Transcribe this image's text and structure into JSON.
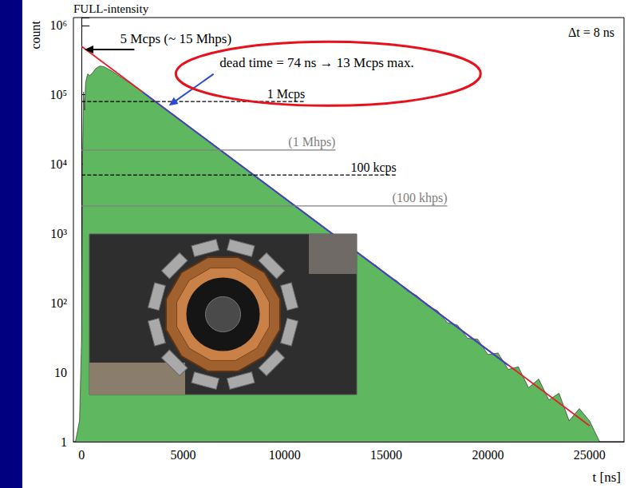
{
  "chart_data": {
    "type": "area",
    "title": "FULL-intensity",
    "subtitle": "Δt = 8 ns",
    "x_label": "t [ns]",
    "y_label": "count",
    "log": "y",
    "grid": false,
    "xlim": [
      -400,
      26700
    ],
    "xticks": [
      0,
      5000,
      10000,
      15000,
      20000,
      25000
    ],
    "ylim": [
      1,
      1300000
    ],
    "yticks": [
      1,
      10,
      {
        "value": 100,
        "label": "10²"
      },
      {
        "value": 1000,
        "label": "10³"
      },
      {
        "value": 10000,
        "label": "10⁴"
      },
      {
        "value": 100000,
        "label": "10⁵"
      },
      {
        "value": 1000000,
        "label": "10⁶"
      }
    ],
    "series": [
      {
        "type": "area",
        "color": "#5fb760",
        "x": [
          -300,
          -100,
          0,
          50,
          100,
          150,
          200,
          300,
          400,
          500,
          700,
          900,
          1100,
          1500,
          2000,
          2500,
          3000,
          3500,
          4000,
          4500,
          5000,
          5500,
          6000,
          6500,
          7000,
          7500,
          8000,
          8500,
          9000,
          9500,
          10000,
          10500,
          11000,
          11500,
          12000,
          12500,
          13000,
          13500,
          14000,
          14500,
          15000,
          15500,
          16000,
          16500,
          17000,
          17500,
          18000,
          18500,
          19000,
          19500,
          20000,
          20500,
          21000,
          21500,
          22000,
          22500,
          23000,
          23500,
          24000,
          24500,
          25000,
          25500
        ],
        "values": [
          1,
          2,
          30,
          12000,
          110000,
          60000,
          150000,
          200000,
          190000,
          200000,
          240000,
          260000,
          255000,
          220000,
          175000,
          140000,
          110000,
          85000,
          66000,
          51500,
          40000,
          31200,
          24400,
          18800,
          14750,
          11450,
          8850,
          6920,
          5330,
          4190,
          3230,
          2540,
          1930,
          1535,
          1170,
          930,
          705,
          560,
          420,
          345,
          255,
          210,
          150,
          128,
          92,
          78,
          52,
          48,
          31,
          30,
          18,
          19,
          11,
          12,
          6,
          8,
          4,
          5,
          2,
          3,
          2,
          1
        ]
      },
      {
        "type": "line",
        "color": "#e41e26",
        "x": [
          0,
          25000
        ],
        "values": [
          500000,
          1.7
        ]
      },
      {
        "type": "line",
        "color": "#2a4dd0",
        "x": [
          3000,
          21000
        ],
        "values": [
          110000,
          12.6
        ]
      }
    ],
    "reference_lines": [
      {
        "label": "1 Mcps",
        "value": 80000,
        "x": [
          0,
          11000
        ],
        "line_style": "dashed",
        "color": "#000000"
      },
      {
        "label": "(1 Mhps)",
        "value": 16000,
        "x": [
          0,
          12500
        ],
        "line_style": "solid",
        "color": "#808080"
      },
      {
        "label": "100 kcps",
        "value": 7000,
        "x": [
          0,
          15500
        ],
        "line_style": "dashed",
        "color": "#000000"
      },
      {
        "label": "(100 khps)",
        "value": 2500,
        "x": [
          0,
          18000
        ],
        "line_style": "solid",
        "color": "#808080"
      }
    ],
    "annotations": [
      {
        "text": "5 Mcps (~ 15 Mhps)",
        "x": 1900,
        "y": 520000,
        "arrow": {
          "from": [
            2600,
            450000
          ],
          "to": [
            150,
            450000
          ],
          "color": "#000000"
        }
      },
      {
        "text": "dead time = 74 ns → 13 Mcps max.",
        "x": 6800,
        "y": 230000,
        "arrow": {
          "from": [
            6500,
            200000
          ],
          "to": [
            4300,
            70000
          ],
          "color": "#2a4dd0"
        }
      }
    ]
  }
}
